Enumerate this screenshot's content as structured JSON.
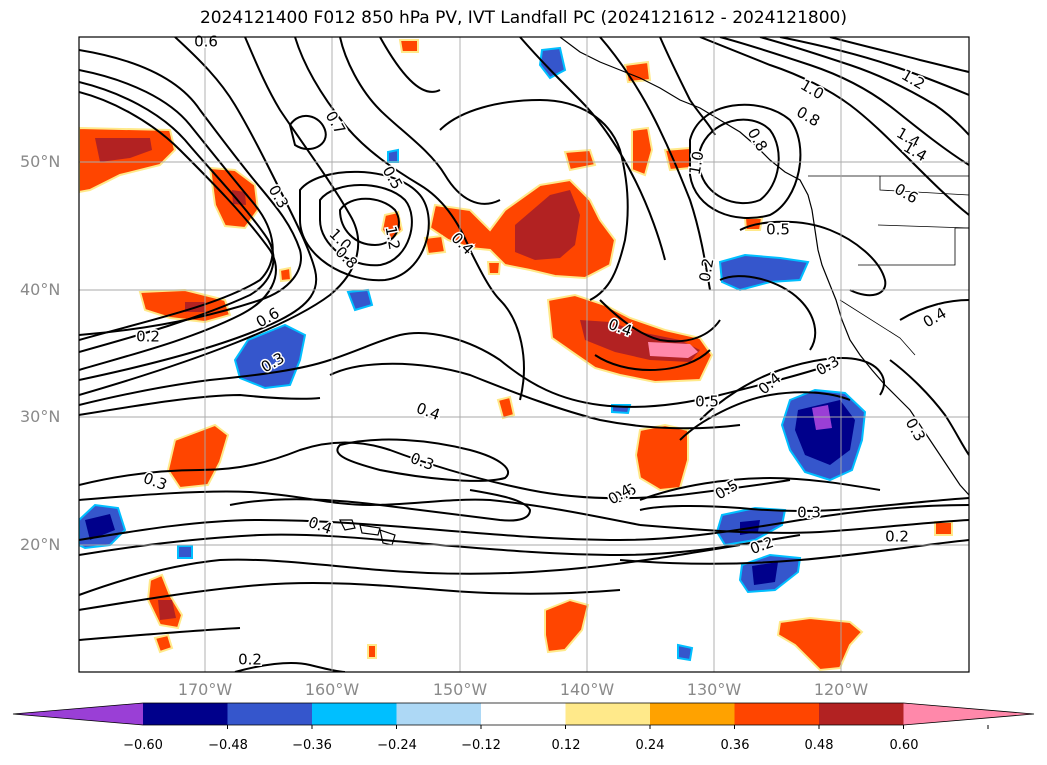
{
  "title": "2024121400 F012 850 hPa PV, IVT Landfall PC (2024121612 - 2024121800)",
  "map": {
    "lat_labels": [
      "50°N",
      "40°N",
      "30°N",
      "20°N"
    ],
    "lon_labels": [
      "170°W",
      "160°W",
      "150°W",
      "140°W",
      "130°W",
      "120°W"
    ],
    "grid": true,
    "contour_variable": "850 hPa PV",
    "shaded_variable": "IVT Landfall PC",
    "contour_labels": [
      "0.6",
      "0.7",
      "0.3",
      "0.5",
      "1.0",
      "0.8",
      "1.2",
      "0.4",
      "0.2",
      "0.6",
      "0.3",
      "0.4",
      "0.3",
      "0.3",
      "0.4",
      "0.2",
      "0.5",
      "0.2",
      "0.4",
      "0.6",
      "0.5",
      "0.3",
      "0.2",
      "0.3",
      "0.4",
      "1.0",
      "0.8",
      "1.2",
      "1.4",
      "1.4",
      "0.6",
      "0.4",
      "1.0",
      "0.8",
      "0.5",
      "0.3",
      "0.4",
      "0.2"
    ]
  },
  "colorbar": {
    "ticks": [
      "−0.60",
      "−0.48",
      "−0.36",
      "−0.24",
      "−0.12",
      "0.12",
      "0.24",
      "0.36",
      "0.48",
      "0.60"
    ],
    "colors": [
      "#9a3fd6",
      "#00008b",
      "#3556cc",
      "#00bfff",
      "#add8f5",
      "#ffffff",
      "#ffe98a",
      "#ffa200",
      "#ff4500",
      "#b22222",
      "#ff88aa"
    ],
    "extend": "both"
  },
  "colors": {
    "red_orange": "#ff4500",
    "dark_red": "#b22222",
    "pink": "#ff88aa",
    "orange_edge": "#ffa200",
    "yellow_edge": "#ffe98a",
    "blue": "#3556cc",
    "navy": "#00008b",
    "purple": "#9a3fd6",
    "cyan_edge": "#00bfff"
  }
}
